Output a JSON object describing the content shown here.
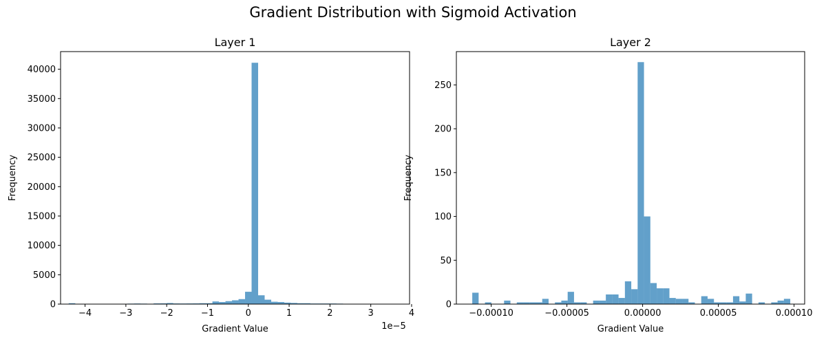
{
  "figure": {
    "title": "Gradient Distribution with Sigmoid Activation"
  },
  "chart_data": [
    {
      "type": "bar",
      "title": "Layer 1",
      "xlabel": "Gradient Value",
      "ylabel": "Frequency",
      "x_offset_text": "1e−5",
      "xlim": [
        -4.6,
        3.95
      ],
      "ylim": [
        0,
        43000
      ],
      "xticks": [
        -4,
        -3,
        -2,
        -1,
        0,
        1,
        2,
        3,
        4
      ],
      "xtick_labels": [
        "−4",
        "−3",
        "−2",
        "−1",
        "0",
        "1",
        "2",
        "3",
        "4"
      ],
      "yticks": [
        0,
        5000,
        10000,
        15000,
        20000,
        25000,
        30000,
        35000,
        40000
      ],
      "ytick_labels": [
        "0",
        "5000",
        "10000",
        "15000",
        "20000",
        "25000",
        "30000",
        "35000",
        "40000"
      ],
      "bar_color": "#1f77b4",
      "bar_opacity": 0.7,
      "bin_edges": [
        -4.4,
        -4.24,
        -4.08,
        -3.92,
        -3.76,
        -3.6,
        -3.44,
        -3.28,
        -3.12,
        -2.96,
        -2.8,
        -2.64,
        -2.48,
        -2.32,
        -2.16,
        -2.0,
        -1.84,
        -1.68,
        -1.52,
        -1.36,
        -1.2,
        -1.04,
        -0.88,
        -0.72,
        -0.56,
        -0.4,
        -0.24,
        -0.08,
        0.08,
        0.24,
        0.4,
        0.56,
        0.72,
        0.88,
        1.04,
        1.2,
        1.36,
        1.52,
        1.68,
        1.84,
        2.0,
        2.16,
        2.32,
        2.48,
        2.64,
        2.8,
        2.96,
        3.12,
        3.28,
        3.44,
        3.6
      ],
      "values": [
        150,
        20,
        10,
        10,
        10,
        20,
        10,
        10,
        10,
        80,
        100,
        80,
        50,
        120,
        130,
        180,
        110,
        100,
        110,
        120,
        150,
        150,
        450,
        350,
        500,
        650,
        850,
        2100,
        41100,
        1500,
        750,
        400,
        350,
        250,
        200,
        150,
        150,
        100,
        100,
        100,
        100,
        80,
        40,
        30,
        20,
        20,
        20,
        20,
        10,
        10
      ]
    },
    {
      "type": "bar",
      "title": "Layer 2",
      "xlabel": "Gradient Value",
      "ylabel": "Frequency",
      "xlim": [
        -0.000123,
        0.000107
      ],
      "ylim": [
        0,
        288
      ],
      "xticks": [
        -0.0001,
        -5e-05,
        0,
        5e-05,
        0.0001
      ],
      "xtick_labels": [
        "−0.00010",
        "−0.00005",
        "0.00000",
        "0.00005",
        "0.00010"
      ],
      "yticks": [
        0,
        50,
        100,
        150,
        200,
        250
      ],
      "ytick_labels": [
        "0",
        "50",
        "100",
        "150",
        "200",
        "250"
      ],
      "bar_color": "#1f77b4",
      "bar_opacity": 0.7,
      "bin_edges": [
        -0.0001125,
        -0.0001083,
        -0.0001041,
        -9.99e-05,
        -9.57e-05,
        -9.15e-05,
        -8.73e-05,
        -8.31e-05,
        -7.89e-05,
        -7.47e-05,
        -7.05e-05,
        -6.63e-05,
        -6.21e-05,
        -5.79e-05,
        -5.37e-05,
        -4.95e-05,
        -4.53e-05,
        -4.11e-05,
        -3.69e-05,
        -3.27e-05,
        -2.85e-05,
        -2.43e-05,
        -2.01e-05,
        -1.59e-05,
        -1.17e-05,
        -7.5e-06,
        -3.3e-06,
        9e-07,
        5.1e-06,
        9.3e-06,
        1.35e-05,
        1.77e-05,
        2.19e-05,
        2.61e-05,
        3.03e-05,
        3.45e-05,
        3.87e-05,
        4.29e-05,
        4.71e-05,
        5.13e-05,
        5.55e-05,
        5.97e-05,
        6.39e-05,
        6.81e-05,
        7.23e-05,
        7.65e-05,
        8.07e-05,
        8.49e-05,
        8.91e-05,
        9.33e-05,
        9.75e-05
      ],
      "values": [
        13,
        0,
        2,
        0,
        0,
        4,
        0,
        2,
        2,
        2,
        2,
        6,
        0,
        2,
        4,
        14,
        2,
        2,
        0,
        4,
        4,
        11,
        11,
        7,
        26,
        17,
        276,
        100,
        24,
        18,
        18,
        7,
        6,
        6,
        2,
        0,
        9,
        6,
        2,
        2,
        2,
        9,
        3,
        12,
        0,
        2,
        0,
        2,
        4,
        6
      ]
    }
  ]
}
